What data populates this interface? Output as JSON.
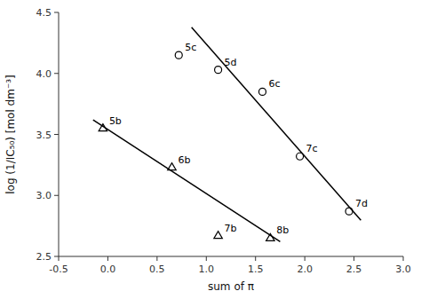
{
  "chart_data": {
    "type": "scatter",
    "xlabel": "sum of π",
    "ylabel": "log (1/IC₅₀) [mol dm⁻³]",
    "xlim": [
      -0.5,
      3.0
    ],
    "ylim": [
      2.5,
      4.5
    ],
    "xticks": [
      -0.5,
      {
        "value": 0.0,
        "label": "0.0"
      },
      0.5,
      {
        "value": 1.0,
        "label": "1.0"
      },
      1.5,
      {
        "value": 2.0,
        "label": "2.0"
      },
      2.5,
      {
        "value": 3.0,
        "label": "3.0"
      }
    ],
    "yticks": [
      2.5,
      {
        "value": 3.0,
        "label": "3.0"
      },
      3.5,
      {
        "value": 4.0,
        "label": "4.0"
      },
      4.5
    ],
    "grid": false,
    "series": [
      {
        "type": "scatter",
        "marker": "circle",
        "color": "#000000",
        "x": [
          0.72,
          1.12,
          1.57,
          1.95,
          2.45
        ],
        "values": [
          4.15,
          4.03,
          3.85,
          3.32,
          2.87
        ],
        "labels": [
          "5c",
          "5d",
          "6c",
          "7c",
          "7d"
        ]
      },
      {
        "type": "scatter",
        "marker": "triangle",
        "color": "#000000",
        "x": [
          -0.05,
          0.65,
          1.12,
          1.65
        ],
        "values": [
          3.55,
          3.23,
          2.67,
          2.65
        ],
        "labels": [
          "5b",
          "6b",
          "7b",
          "8b"
        ]
      },
      {
        "type": "line",
        "color": "#000000",
        "x": [
          0.85,
          2.57
        ],
        "values": [
          4.378,
          2.7956
        ]
      },
      {
        "type": "line",
        "color": "#000000",
        "x": [
          -0.15,
          1.75
        ],
        "values": [
          3.61875,
          2.62125
        ]
      }
    ]
  }
}
